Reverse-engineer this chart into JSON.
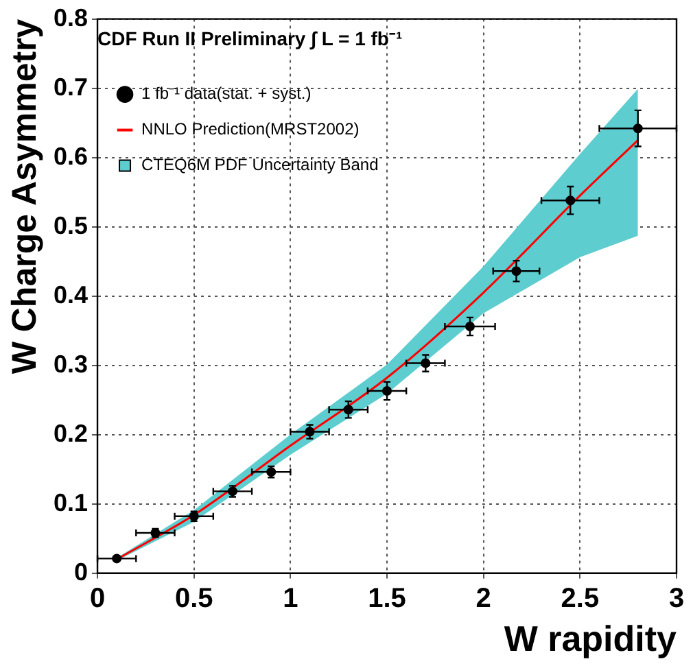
{
  "chart_data": {
    "type": "scatter",
    "title": "CDF Run II Preliminary ∫ L = 1 fb⁻¹",
    "xlabel": "W rapidity",
    "ylabel": "W Charge Asymmetry",
    "xlim": [
      0,
      3
    ],
    "xticks": [
      0,
      0.5,
      1,
      1.5,
      2,
      2.5,
      3
    ],
    "ylim": [
      0,
      0.8
    ],
    "yticks": [
      0,
      0.1,
      0.2,
      0.3,
      0.4,
      0.5,
      0.6,
      0.7,
      0.8
    ],
    "grid": true,
    "legend": "top left",
    "series": [
      {
        "name": "CTEQ6M PDF Uncertainty Band",
        "type": "area",
        "color": "#5ecdcf",
        "x": [
          0.1,
          0.5,
          1,
          1.5,
          2,
          2.5,
          2.8
        ],
        "values": [
          null,
          null,
          null,
          null,
          null,
          null,
          null
        ],
        "lower": [
          0.018,
          0.074,
          0.171,
          0.259,
          0.375,
          0.456,
          0.487
        ],
        "upper": [
          0.022,
          0.091,
          0.2,
          0.301,
          0.443,
          0.605,
          0.699
        ]
      },
      {
        "name": "NNLO Prediction(MRST2002)",
        "type": "line",
        "color": "#ff0000",
        "marker": "none",
        "x": [
          0.1,
          0.5,
          1,
          1.5,
          2,
          2.5,
          2.8
        ],
        "values": [
          0.02,
          0.084,
          0.184,
          0.282,
          0.405,
          0.545,
          0.625
        ]
      },
      {
        "name": "1 fb⁻¹ data(stat. + syst.)",
        "type": "scatter",
        "color": "#000000",
        "marker": "circle",
        "x": [
          0.1,
          0.3,
          0.5,
          0.7,
          0.9,
          1.1,
          1.3,
          1.5,
          1.7,
          1.93,
          2.17,
          2.45,
          2.8
        ],
        "values": [
          0.021,
          0.058,
          0.082,
          0.118,
          0.146,
          0.204,
          0.236,
          0.263,
          0.303,
          0.356,
          0.436,
          0.538,
          0.642
        ],
        "errors": [
          null,
          0.006,
          0.007,
          0.008,
          0.008,
          0.01,
          0.012,
          0.013,
          0.012,
          0.013,
          0.015,
          0.02,
          0.026
        ],
        "xerrors": [
          0.1,
          0.1,
          0.1,
          0.1,
          0.1,
          0.1,
          0.1,
          0.1,
          0.1,
          0.13,
          0.12,
          0.15,
          0.2
        ]
      }
    ]
  }
}
